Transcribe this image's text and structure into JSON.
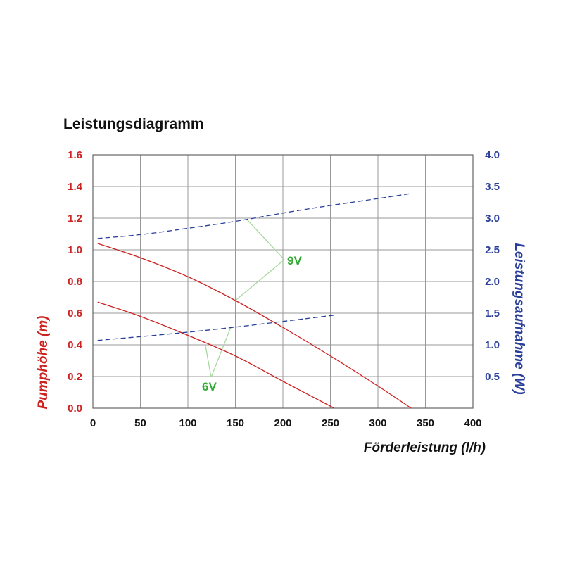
{
  "chart_data": {
    "type": "line",
    "title": "Leistungsdiagramm",
    "xlabel": "Förderleistung (l/h)",
    "ylabel_left": "Pumphöhe (m)",
    "ylabel_right": "Leistungsaufnahme (W)",
    "xlim": [
      0,
      400
    ],
    "ylim_left": [
      0,
      1.6
    ],
    "ylim_right": [
      0,
      4.0
    ],
    "x_ticks": [
      "0",
      "50",
      "100",
      "150",
      "200",
      "250",
      "300",
      "350",
      "400"
    ],
    "y_left_ticks": [
      "0.0",
      "0.2",
      "0.4",
      "0.6",
      "0.8",
      "1.0",
      "1.2",
      "1.4",
      "1.6"
    ],
    "y_right_ticks": [
      "0.5",
      "1.0",
      "1.5",
      "2.0",
      "2.5",
      "3.0",
      "3.5",
      "4.0"
    ],
    "grid": true,
    "annotations": [
      {
        "text": "9V",
        "color": "#33aa33"
      },
      {
        "text": "6V",
        "color": "#33aa33"
      }
    ],
    "series": [
      {
        "axis": "left",
        "style": "solid",
        "color": "#cc2222",
        "x": [
          5,
          50,
          100,
          150,
          200,
          250,
          300,
          335
        ],
        "y": [
          1.04,
          0.95,
          0.83,
          0.68,
          0.51,
          0.33,
          0.14,
          0.0
        ]
      },
      {
        "axis": "left",
        "style": "solid",
        "color": "#cc2222",
        "x": [
          5,
          50,
          100,
          150,
          200,
          254
        ],
        "y": [
          0.67,
          0.58,
          0.46,
          0.33,
          0.17,
          0.0
        ]
      },
      {
        "axis": "right",
        "style": "dashed",
        "color": "#2a3f9a",
        "x": [
          5,
          50,
          100,
          150,
          200,
          250,
          300,
          335
        ],
        "y": [
          2.68,
          2.74,
          2.84,
          2.95,
          3.08,
          3.2,
          3.31,
          3.39
        ]
      },
      {
        "axis": "right",
        "style": "dashed",
        "color": "#2a3f9a",
        "x": [
          5,
          50,
          100,
          150,
          200,
          255
        ],
        "y": [
          1.07,
          1.13,
          1.2,
          1.28,
          1.37,
          1.47
        ]
      }
    ]
  },
  "colors": {
    "left_axis": "#cc2222",
    "right_axis": "#2a3f9a",
    "annotation": "#33aa33",
    "leader": "#a8d8a0",
    "grid": "#999999"
  }
}
